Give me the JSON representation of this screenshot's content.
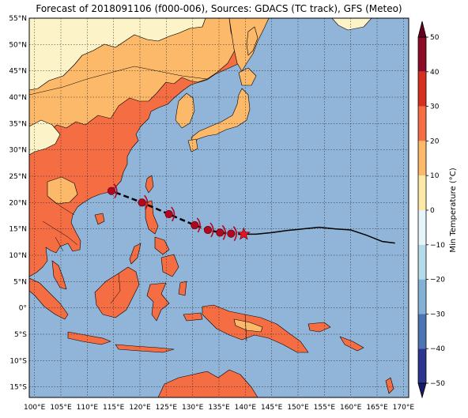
{
  "title": "Forecast of 2018091106 (f000-006), Sources: GDACS (TC track), GFS (Meteo)",
  "map": {
    "lon_range": [
      99,
      171
    ],
    "lat_range": [
      -17,
      55
    ],
    "lon_ticks": [
      {
        "v": 100,
        "label": "100°E"
      },
      {
        "v": 105,
        "label": "105°E"
      },
      {
        "v": 110,
        "label": "110°E"
      },
      {
        "v": 115,
        "label": "115°E"
      },
      {
        "v": 120,
        "label": "120°E"
      },
      {
        "v": 125,
        "label": "125°E"
      },
      {
        "v": 130,
        "label": "130°E"
      },
      {
        "v": 135,
        "label": "135°E"
      },
      {
        "v": 140,
        "label": "140°E"
      },
      {
        "v": 145,
        "label": "145°E"
      },
      {
        "v": 150,
        "label": "150°E"
      },
      {
        "v": 155,
        "label": "155°E"
      },
      {
        "v": 160,
        "label": "160°E"
      },
      {
        "v": 165,
        "label": "165°E"
      },
      {
        "v": 170,
        "label": "170°E"
      }
    ],
    "lat_ticks": [
      {
        "v": 55,
        "label": "55°N"
      },
      {
        "v": 50,
        "label": "50°N"
      },
      {
        "v": 45,
        "label": "45°N"
      },
      {
        "v": 40,
        "label": "40°N"
      },
      {
        "v": 35,
        "label": "35°N"
      },
      {
        "v": 30,
        "label": "30°N"
      },
      {
        "v": 25,
        "label": "25°N"
      },
      {
        "v": 20,
        "label": "20°N"
      },
      {
        "v": 15,
        "label": "15°N"
      },
      {
        "v": 10,
        "label": "10°N"
      },
      {
        "v": 5,
        "label": "5°N"
      },
      {
        "v": 0,
        "label": "0°"
      },
      {
        "v": -5,
        "label": "5°S"
      },
      {
        "v": -10,
        "label": "10°S"
      },
      {
        "v": -15,
        "label": "15°S"
      }
    ],
    "colors": {
      "ocean": "#91b4d9",
      "land_cool": "#fdf3c8",
      "land_mild": "#fdb96a",
      "land_warm": "#f46d43",
      "coast": "#000000",
      "grid": "#222222"
    }
  },
  "track": {
    "forecast_points": [
      [
        139.7,
        14.0
      ],
      [
        137.3,
        14.1
      ],
      [
        135.2,
        14.3
      ],
      [
        132.9,
        14.8
      ],
      [
        130.4,
        15.7
      ],
      [
        125.5,
        17.8
      ],
      [
        120.4,
        20.0
      ],
      [
        114.6,
        22.2
      ]
    ],
    "past_track": [
      [
        139.7,
        14.0
      ],
      [
        142,
        14.0
      ],
      [
        145,
        14.3
      ],
      [
        148,
        14.7
      ],
      [
        151,
        15.0
      ],
      [
        154,
        15.3
      ],
      [
        157,
        15.0
      ],
      [
        160,
        14.8
      ],
      [
        163,
        13.8
      ],
      [
        166,
        12.6
      ],
      [
        168.4,
        12.3
      ]
    ],
    "current_position": [
      139.7,
      14.0
    ],
    "colors": {
      "marker": "#b2071c",
      "star": "#e8131b",
      "line": "#000000"
    }
  },
  "colorbar": {
    "label": "Min Temperature (°C)",
    "ticks": [
      {
        "v": 50,
        "label": "50"
      },
      {
        "v": 40,
        "label": "40"
      },
      {
        "v": 30,
        "label": "30"
      },
      {
        "v": 20,
        "label": "20"
      },
      {
        "v": 10,
        "label": "10"
      },
      {
        "v": 0,
        "label": "0"
      },
      {
        "v": -10,
        "label": "−10"
      },
      {
        "v": -20,
        "label": "−20"
      },
      {
        "v": -30,
        "label": "−30"
      },
      {
        "v": -40,
        "label": "−40"
      },
      {
        "v": -50,
        "label": "−50"
      }
    ],
    "bands": [
      {
        "from": 40,
        "to": 50,
        "color": "#8c0b26"
      },
      {
        "from": 30,
        "to": 40,
        "color": "#d7301f"
      },
      {
        "from": 20,
        "to": 30,
        "color": "#f46d43"
      },
      {
        "from": 10,
        "to": 20,
        "color": "#fdb96a"
      },
      {
        "from": 0,
        "to": 10,
        "color": "#fee8a6"
      },
      {
        "from": -10,
        "to": 0,
        "color": "#e6f5f9"
      },
      {
        "from": -20,
        "to": -10,
        "color": "#b4dbea"
      },
      {
        "from": -30,
        "to": -20,
        "color": "#81b1d4"
      },
      {
        "from": -40,
        "to": -30,
        "color": "#4a74b4"
      },
      {
        "from": -50,
        "to": -40,
        "color": "#2b3590"
      }
    ],
    "extend_high_color": "#67001f",
    "extend_low_color": "#1a1a6b"
  }
}
